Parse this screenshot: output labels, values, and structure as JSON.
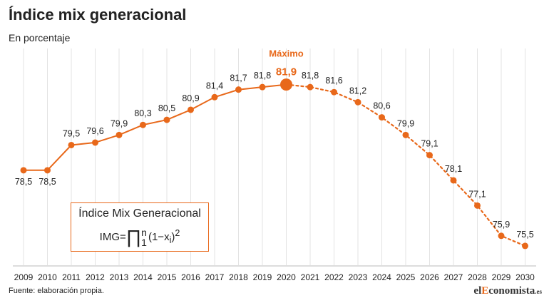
{
  "title": "Índice mix generacional",
  "subtitle": "En porcentaje",
  "source": "Fuente: elaboración propia.",
  "logo": {
    "pre": "el",
    "accent": "E",
    "post": "conomista",
    "suffix": ".es"
  },
  "max_label": "Máximo",
  "formula": {
    "title": "Índice Mix Generacional",
    "lhs": "IMG=",
    "product_symbol": "∏",
    "upper": "n",
    "lower": "1",
    "body": "(1−x",
    "subscript": "i",
    "close": ")",
    "exponent": "2"
  },
  "colors": {
    "accent": "#e8681a",
    "text": "#222222",
    "grid": "#e3e3e3"
  },
  "chart_data": {
    "type": "line",
    "title": "Índice mix generacional",
    "ylabel": "En porcentaje",
    "x": [
      "2009",
      "2010",
      "2011",
      "2012",
      "2013",
      "2014",
      "2015",
      "2016",
      "2017",
      "2018",
      "2019",
      "2020",
      "2021",
      "2022",
      "2023",
      "2024",
      "2025",
      "2026",
      "2027",
      "2028",
      "2029",
      "2030"
    ],
    "series": [
      {
        "values": [
          78.5,
          78.5,
          79.5,
          79.6,
          79.9,
          80.3,
          80.5,
          80.9,
          81.4,
          81.7,
          81.8,
          81.9,
          null,
          null,
          null,
          null,
          null,
          null,
          null,
          null,
          null,
          null
        ],
        "style": "solid"
      },
      {
        "values": [
          null,
          null,
          null,
          null,
          null,
          null,
          null,
          null,
          null,
          null,
          null,
          81.9,
          81.8,
          81.6,
          81.2,
          80.6,
          79.9,
          79.1,
          78.1,
          77.1,
          75.9,
          75.5
        ],
        "style": "dotted"
      }
    ],
    "labels": [
      "78,5",
      "78,5",
      "79,5",
      "79,6",
      "79,9",
      "80,3",
      "80,5",
      "80,9",
      "81,4",
      "81,7",
      "81,8",
      "81,9",
      "81,8",
      "81,6",
      "81,2",
      "80,6",
      "79,9",
      "79,1",
      "78,1",
      "77,1",
      "75,9",
      "75,5"
    ],
    "max_index": 11,
    "ylim": [
      75.3,
      82.2
    ],
    "grid": "vertical"
  }
}
